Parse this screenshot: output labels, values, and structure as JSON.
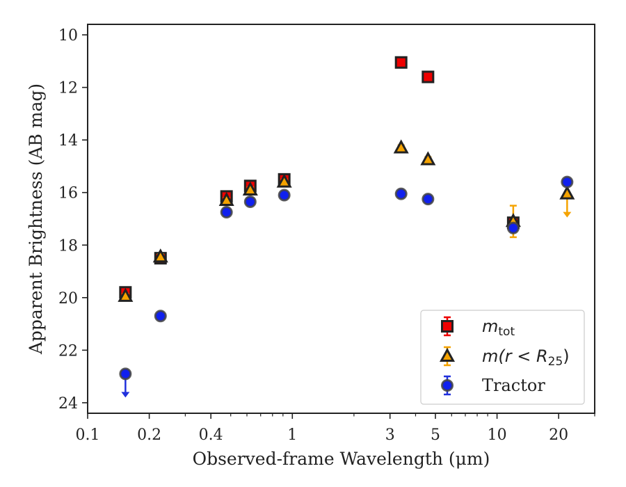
{
  "chart_data": {
    "type": "scatter",
    "title": "",
    "xlabel": "Observed-frame Wavelength (μm)",
    "ylabel": "Apparent Brightness (AB mag)",
    "xscale": "log",
    "xlim": [
      0.1,
      30
    ],
    "ylim": [
      24.4,
      9.6
    ],
    "y_inverted": true,
    "grid": false,
    "legend_position": "lower-right",
    "x_ticks": [
      0.1,
      0.2,
      0.4,
      1,
      3,
      5,
      10,
      20
    ],
    "x_tick_labels": [
      "0.1",
      "0.2",
      "0.4",
      "1",
      "3",
      "5",
      "10",
      "20"
    ],
    "y_ticks": [
      10,
      12,
      14,
      16,
      18,
      20,
      22,
      24
    ],
    "y_tick_labels": [
      "10",
      "12",
      "14",
      "16",
      "18",
      "20",
      "22",
      "24"
    ],
    "series": [
      {
        "name": "m_tot",
        "legend_main": "m",
        "legend_sub": "tot",
        "marker": "square",
        "fill": "#ee0000",
        "edge": "#222222",
        "errcolor": "#ee0000",
        "points": [
          {
            "x": 0.153,
            "y": 19.8,
            "err": 0.1
          },
          {
            "x": 0.227,
            "y": 18.5,
            "err": 0.1
          },
          {
            "x": 0.477,
            "y": 16.15,
            "err": 0.1
          },
          {
            "x": 0.623,
            "y": 15.75,
            "err": 0.1
          },
          {
            "x": 0.913,
            "y": 15.5,
            "err": 0.1
          },
          {
            "x": 3.4,
            "y": 11.05,
            "err": 0.1
          },
          {
            "x": 4.6,
            "y": 11.6,
            "err": 0.1
          },
          {
            "x": 12.0,
            "y": 17.15,
            "err": 0.1
          }
        ]
      },
      {
        "name": "m(r < R_25)",
        "legend_main": "m(r < R",
        "legend_sub": "25",
        "legend_tail": ")",
        "marker": "triangle",
        "fill": "#f5a300",
        "edge": "#222222",
        "errcolor": "#f5a300",
        "points": [
          {
            "x": 0.153,
            "y": 19.95,
            "err": 0.1
          },
          {
            "x": 0.227,
            "y": 18.45,
            "err": 0.1
          },
          {
            "x": 0.477,
            "y": 16.3,
            "err": 0.1
          },
          {
            "x": 0.623,
            "y": 15.9,
            "err": 0.1
          },
          {
            "x": 0.913,
            "y": 15.6,
            "err": 0.1
          },
          {
            "x": 3.4,
            "y": 14.3,
            "err": 0.1
          },
          {
            "x": 4.6,
            "y": 14.75,
            "err": 0.1
          },
          {
            "x": 12.0,
            "y": 17.1,
            "err": 0.6
          },
          {
            "x": 22.0,
            "y": 16.05,
            "err": 0,
            "upper_limit": true
          }
        ]
      },
      {
        "name": "Tractor",
        "legend_main": "Tractor",
        "marker": "circle",
        "fill": "#1020ee",
        "edge": "#444444",
        "errcolor": "#2030dd",
        "points": [
          {
            "x": 0.153,
            "y": 22.9,
            "err": 0,
            "upper_limit": true
          },
          {
            "x": 0.227,
            "y": 20.7,
            "err": 0.05
          },
          {
            "x": 0.477,
            "y": 16.75,
            "err": 0.05
          },
          {
            "x": 0.623,
            "y": 16.35,
            "err": 0.05
          },
          {
            "x": 0.913,
            "y": 16.1,
            "err": 0.05
          },
          {
            "x": 3.4,
            "y": 16.05,
            "err": 0.05
          },
          {
            "x": 4.6,
            "y": 16.25,
            "err": 0.05
          },
          {
            "x": 12.0,
            "y": 17.35,
            "err": 0.1
          },
          {
            "x": 22.0,
            "y": 15.6,
            "err": 0.05
          }
        ]
      }
    ]
  }
}
